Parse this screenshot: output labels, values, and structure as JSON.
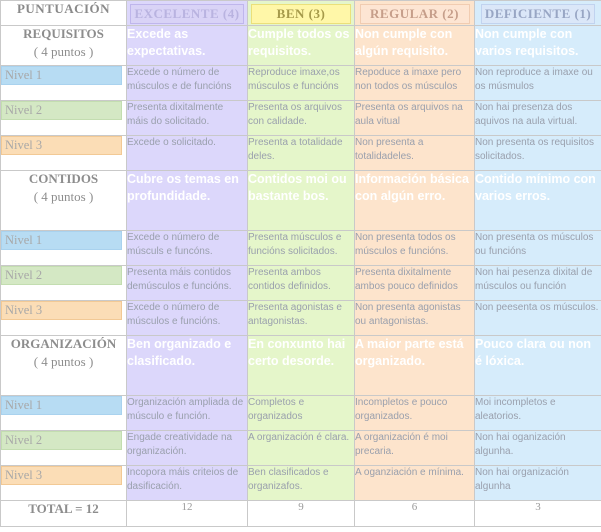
{
  "headers": {
    "puntuacion": "PUNTUACIÓN",
    "excelente": "EXCELENTE (4)",
    "ben": "BEN (3)",
    "regular": "REGULAR (2)",
    "deficiente": "DEFICIENTE (1)"
  },
  "sections": [
    {
      "title": "REQUISITOS",
      "points": "( 4 puntos )",
      "summary": [
        "Excede as expectativas.",
        "Cumple todos os requisitos.",
        "Non cumple con algún requisito.",
        "Non cumple con varios requisitos."
      ],
      "levels": [
        {
          "label": "Nivel 1",
          "cells": [
            "Excede o número de músculos e de funcións",
            "Reproduce imaxe,os músculos e funcións",
            "Repoduce a imaxe pero non todos os músculos",
            "Non reproduce a imaxe ou os músmulos"
          ]
        },
        {
          "label": "Nivel 2",
          "cells": [
            "Presenta dixitalmente máis do solicitado.",
            "Presenta os arquivos con calidade.",
            "Presenta os arquivos na aula vitual",
            "Non hai presenza dos aquivos na aula virtual."
          ]
        },
        {
          "label": "Nivel 3",
          "cells": [
            "Excede o solicitado.",
            "Presenta a totalidade deles.",
            "Non presenta a totalidadeles.",
            "Non presenta os requisitos solicitados."
          ]
        }
      ]
    },
    {
      "title": "CONTIDOS",
      "points": "( 4 puntos )",
      "summary": [
        "Cubre os temas en profundidade.",
        "Contidos moi ou bastante bos.",
        "Información básica con algún erro.",
        "Contido mínimo con varios erros."
      ],
      "levels": [
        {
          "label": "Nivel 1",
          "cells": [
            "Excede o número de músculs e funcóns.",
            "Presenta músculos e funcións solicitados.",
            "Non presenta todos os músculos e funcións.",
            "Non presenta os músculos ou funcións"
          ]
        },
        {
          "label": "Nivel 2",
          "cells": [
            "Presenta máis contidos demúsculos e funcións.",
            "Presenta ambos contidos definidos.",
            "Presenta dixitalmente ambos pouco definidos",
            "Non hai pesenza dixital de músculos ou función"
          ]
        },
        {
          "label": "Nivel 3",
          "cells": [
            "Excede o número de músculos e funcións.",
            "Presenta agonistas e antagonistas.",
            "Non presenta agonistas ou antagonistas.",
            "Non peesenta os músculos."
          ]
        }
      ]
    },
    {
      "title": "ORGANIZACIÓN",
      "points": "( 4 puntos )",
      "summary": [
        "Ben organizado e clasificado.",
        "En conxunto hai certo desorde.",
        "A maior parte está organizado.",
        "Pouco clara ou non é lóxica."
      ],
      "levels": [
        {
          "label": "Nivel 1",
          "cells": [
            "Organización ampliada de músculo e función.",
            "Completos e organizados",
            "Incompletos e pouco organizados.",
            "Moi incompletos e aleatorios."
          ]
        },
        {
          "label": "Nivel 2",
          "cells": [
            "Engade creatividade na organización.",
            "A organización é clara.",
            "A organización é moi precaria.",
            "Non hai oganización algunha."
          ]
        },
        {
          "label": "Nivel 3",
          "cells": [
            "Incopora máis criteios de dasificación.",
            "Ben clasificados e organizafos.",
            "A oganziación e mínima.",
            "Non hai organización algunha"
          ]
        }
      ]
    }
  ],
  "total": {
    "label": "TOTAL = 12",
    "values": [
      "12",
      "9",
      "6",
      "3"
    ]
  }
}
